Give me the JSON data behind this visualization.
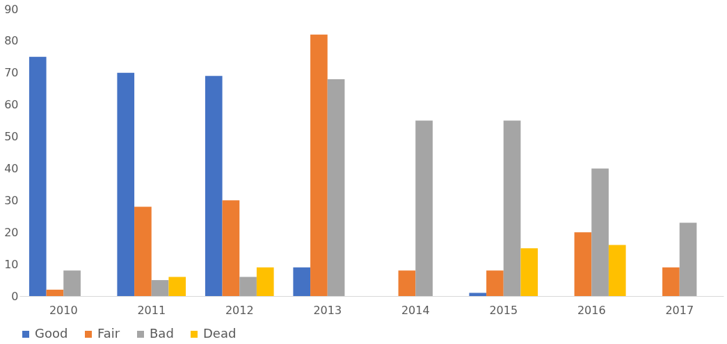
{
  "chart_data": {
    "type": "bar",
    "categories": [
      "2010",
      "2011",
      "2012",
      "2013",
      "2014",
      "2015",
      "2016",
      "2017"
    ],
    "series": [
      {
        "name": "Good",
        "color": "#4472c4",
        "values": [
          75,
          70,
          69,
          9,
          0,
          1,
          0,
          0
        ]
      },
      {
        "name": "Fair",
        "color": "#ed7d31",
        "values": [
          2,
          28,
          30,
          82,
          8,
          8,
          20,
          9
        ]
      },
      {
        "name": "Bad",
        "color": "#a5a5a5",
        "values": [
          8,
          5,
          6,
          68,
          55,
          55,
          40,
          23
        ]
      },
      {
        "name": "Dead",
        "color": "#ffc000",
        "values": [
          0,
          6,
          9,
          0,
          0,
          15,
          16,
          0
        ]
      }
    ],
    "ylim": [
      0,
      90
    ],
    "yticks": [
      0,
      10,
      20,
      30,
      40,
      50,
      60,
      70,
      80,
      90
    ],
    "grid": false,
    "legend": "bottom"
  }
}
